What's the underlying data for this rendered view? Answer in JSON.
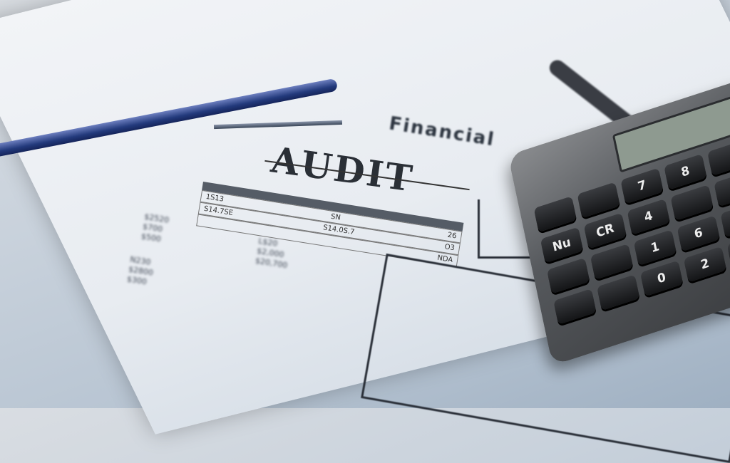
{
  "document": {
    "heading": "AUDIT",
    "subheading": "Financial",
    "table_rows": [
      [
        "1S13",
        "SN",
        "26"
      ],
      [
        "S14.7SE",
        "S14.0S.7",
        "O3"
      ],
      [
        "",
        "",
        "NDA"
      ]
    ],
    "blurred_figures": [
      "$2520",
      "$700",
      "$500",
      "L$20",
      "$2,000",
      "$20,700",
      "N230",
      "$2800",
      "$300"
    ]
  },
  "calculator": {
    "keys": [
      "",
      "",
      "7",
      "8",
      "",
      "Nu",
      "CR",
      "4",
      "",
      "",
      "",
      "",
      "1",
      "6",
      "",
      "",
      "",
      "0",
      "2",
      ""
    ]
  },
  "colors": {
    "chart_blue": "#4f86c6",
    "paper": "#eef1f5",
    "pen": "#233a7c",
    "calculator": "#55585c"
  }
}
